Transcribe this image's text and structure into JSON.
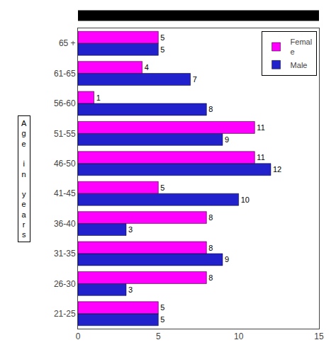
{
  "chart_data": {
    "type": "bar",
    "orientation": "horizontal",
    "ylabel": "A\ng\ne\n\ni\nn\n\ny\ne\na\nr\ns",
    "categories": [
      "21-25",
      "26-30",
      "31-35",
      "36-40",
      "41-45",
      "46-50",
      "51-55",
      "56-60",
      "61-65",
      "65 +"
    ],
    "series": [
      {
        "name": "Femal\ne",
        "color": "#FF00FF",
        "values": [
          5,
          8,
          8,
          8,
          5,
          11,
          11,
          1,
          4,
          5
        ]
      },
      {
        "name": "Male",
        "color": "#2222CC",
        "values": [
          5,
          3,
          9,
          3,
          10,
          12,
          9,
          8,
          7,
          5
        ]
      }
    ],
    "xlim": [
      0,
      15
    ],
    "xticks": [
      0,
      5,
      10,
      15
    ],
    "data_labels": true,
    "legend": "upper right",
    "grid": false
  }
}
